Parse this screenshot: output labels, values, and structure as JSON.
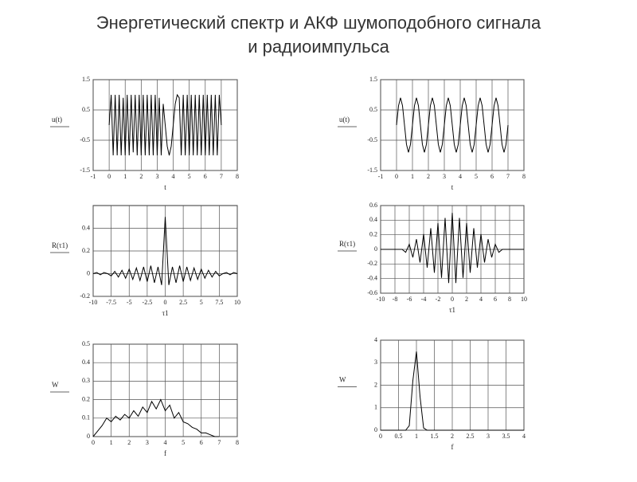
{
  "title": [
    "Энергетический спектр и АКФ шумоподобного сигнала",
    "и радиоимпульса"
  ],
  "chart_data": [
    {
      "type": "line",
      "ylabel": "u(t)",
      "xlabel": "t",
      "color": "#000000",
      "grid": true,
      "xlim": [
        -1,
        8
      ],
      "ylim": [
        -1.5,
        1.5
      ],
      "xticks": [
        -1,
        0,
        1,
        2,
        3,
        4,
        5,
        6,
        7,
        8
      ],
      "yticks": [
        -1.5,
        -0.5,
        0.5,
        1.5
      ],
      "x": [
        0,
        0.125,
        0.25,
        0.375,
        0.5,
        0.625,
        0.75,
        0.875,
        1,
        1.125,
        1.25,
        1.375,
        1.5,
        1.625,
        1.75,
        1.875,
        2,
        2.125,
        2.25,
        2.375,
        2.5,
        2.625,
        2.75,
        2.875,
        3,
        3.125,
        3.25,
        3.375,
        3.5,
        3.625,
        3.75,
        3.875,
        4,
        4.125,
        4.25,
        4.375,
        4.5,
        4.625,
        4.75,
        4.875,
        5,
        5.125,
        5.25,
        5.375,
        5.5,
        5.625,
        5.75,
        5.875,
        6,
        6.125,
        6.25,
        6.375,
        6.5,
        6.625,
        6.75,
        6.875,
        7
      ],
      "values": [
        0,
        1,
        -1,
        1,
        -1,
        1,
        -1,
        0.9,
        -1,
        1,
        -1,
        1,
        -0.9,
        1,
        -1,
        1,
        -1,
        1,
        -1,
        1,
        -1,
        1,
        -1,
        1,
        -1,
        0.9,
        -1,
        0.7,
        0,
        -0.7,
        -1,
        -0.7,
        0,
        0.7,
        1,
        0.9,
        -1,
        1,
        -1,
        1,
        -1,
        1,
        -1,
        1,
        -1,
        1,
        -1,
        1,
        -1,
        1,
        -1,
        1,
        -1,
        1,
        -1,
        1,
        0
      ]
    },
    {
      "type": "line",
      "ylabel": "u(t)",
      "xlabel": "t",
      "color": "#000000",
      "grid": true,
      "xlim": [
        -1,
        8
      ],
      "ylim": [
        -1.5,
        1.5
      ],
      "xticks": [
        -1,
        0,
        1,
        2,
        3,
        4,
        5,
        6,
        7,
        8
      ],
      "yticks": [
        -1.5,
        -0.5,
        0.5,
        1.5
      ],
      "x": [
        0,
        0.125,
        0.25,
        0.375,
        0.5,
        0.625,
        0.75,
        0.875,
        1,
        1.125,
        1.25,
        1.375,
        1.5,
        1.625,
        1.75,
        1.875,
        2,
        2.125,
        2.25,
        2.375,
        2.5,
        2.625,
        2.75,
        2.875,
        3,
        3.125,
        3.25,
        3.375,
        3.5,
        3.625,
        3.75,
        3.875,
        4,
        4.125,
        4.25,
        4.375,
        4.5,
        4.625,
        4.75,
        4.875,
        5,
        5.125,
        5.25,
        5.375,
        5.5,
        5.625,
        5.75,
        5.875,
        6,
        6.125,
        6.25,
        6.375,
        6.5,
        6.625,
        6.75,
        6.875,
        7
      ],
      "values": [
        0,
        0.64,
        0.9,
        0.64,
        0,
        -0.64,
        -0.9,
        -0.64,
        0,
        0.64,
        0.9,
        0.64,
        0,
        -0.64,
        -0.9,
        -0.64,
        0,
        0.64,
        0.9,
        0.64,
        0,
        -0.64,
        -0.9,
        -0.64,
        0,
        0.64,
        0.9,
        0.64,
        0,
        -0.64,
        -0.9,
        -0.64,
        0,
        0.64,
        0.9,
        0.64,
        0,
        -0.64,
        -0.9,
        -0.64,
        0,
        0.64,
        0.9,
        0.64,
        0,
        -0.64,
        -0.9,
        -0.64,
        0,
        0.64,
        0.9,
        0.64,
        0,
        -0.64,
        -0.9,
        -0.64,
        0
      ]
    },
    {
      "type": "line",
      "ylabel": "R(τ1)",
      "xlabel": "τ1",
      "color": "#000000",
      "grid": true,
      "xlim": [
        -10,
        10
      ],
      "ylim": [
        -0.2,
        0.6
      ],
      "xticks": [
        -10,
        -7.5,
        -5,
        -2.5,
        0,
        2.5,
        5,
        7.5,
        10
      ],
      "yticks": [
        -0.2,
        0,
        0.2,
        0.4
      ],
      "x": [
        -10,
        -9.5,
        -9,
        -8.5,
        -8,
        -7.5,
        -7,
        -6.5,
        -6,
        -5.5,
        -5,
        -4.5,
        -4,
        -3.5,
        -3,
        -2.5,
        -2,
        -1.5,
        -1,
        -0.5,
        0,
        0.5,
        1,
        1.5,
        2,
        2.5,
        3,
        3.5,
        4,
        4.5,
        5,
        5.5,
        6,
        6.5,
        7,
        7.5,
        8,
        8.5,
        9,
        9.5,
        10
      ],
      "values": [
        0,
        0.01,
        -0.01,
        0.01,
        0,
        -0.02,
        0.02,
        -0.03,
        0.03,
        -0.04,
        0.04,
        -0.05,
        0.05,
        -0.06,
        0.06,
        -0.07,
        0.07,
        -0.08,
        0.06,
        -0.1,
        0.5,
        -0.1,
        0.06,
        -0.08,
        0.07,
        -0.07,
        0.06,
        -0.06,
        0.05,
        -0.05,
        0.04,
        -0.04,
        0.03,
        -0.03,
        0.02,
        -0.02,
        0,
        0.01,
        -0.01,
        0.01,
        0
      ]
    },
    {
      "type": "line",
      "ylabel": "R(τ1)",
      "xlabel": "τ1",
      "color": "#000000",
      "grid": true,
      "xlim": [
        -10,
        10
      ],
      "ylim": [
        -0.6,
        0.6
      ],
      "xticks": [
        -10,
        -8,
        -6,
        -4,
        -2,
        0,
        2,
        4,
        6,
        8,
        10
      ],
      "yticks": [
        -0.6,
        -0.4,
        -0.2,
        0,
        0.2,
        0.4,
        0.6
      ],
      "x": [
        -10,
        -9.5,
        -9,
        -8.5,
        -8,
        -7.5,
        -7,
        -6.5,
        -6,
        -5.5,
        -5,
        -4.5,
        -4,
        -3.5,
        -3,
        -2.5,
        -2,
        -1.5,
        -1,
        -0.5,
        0,
        0.5,
        1,
        1.5,
        2,
        2.5,
        3,
        3.5,
        4,
        4.5,
        5,
        5.5,
        6,
        6.5,
        7,
        7.5,
        8,
        8.5,
        9,
        9.5,
        10
      ],
      "values": [
        0,
        0,
        0,
        0,
        0,
        0,
        0,
        -0.04,
        0.07,
        -0.11,
        0.14,
        -0.18,
        0.21,
        -0.25,
        0.29,
        -0.32,
        0.36,
        -0.39,
        0.43,
        -0.46,
        0.5,
        -0.46,
        0.43,
        -0.39,
        0.36,
        -0.32,
        0.29,
        -0.25,
        0.21,
        -0.18,
        0.14,
        -0.11,
        0.07,
        -0.04,
        0,
        0,
        0,
        0,
        0,
        0,
        0
      ]
    },
    {
      "type": "line",
      "ylabel": "W",
      "xlabel": "f",
      "color": "#000000",
      "grid": true,
      "xlim": [
        0,
        8
      ],
      "ylim": [
        0,
        0.5
      ],
      "xticks": [
        0,
        1,
        2,
        3,
        4,
        5,
        6,
        7,
        8
      ],
      "yticks": [
        0,
        0.1,
        0.2,
        0.3,
        0.4,
        0.5
      ],
      "x": [
        0,
        0.25,
        0.5,
        0.75,
        1,
        1.25,
        1.5,
        1.75,
        2,
        2.25,
        2.5,
        2.75,
        3,
        3.25,
        3.5,
        3.75,
        4,
        4.25,
        4.5,
        4.75,
        5,
        5.25,
        5.5,
        5.75,
        6,
        6.25,
        6.5,
        6.75,
        7
      ],
      "values": [
        0,
        0.03,
        0.06,
        0.1,
        0.08,
        0.11,
        0.09,
        0.12,
        0.1,
        0.14,
        0.11,
        0.16,
        0.13,
        0.19,
        0.15,
        0.2,
        0.14,
        0.17,
        0.1,
        0.13,
        0.08,
        0.07,
        0.05,
        0.04,
        0.02,
        0.02,
        0.01,
        0,
        0
      ]
    },
    {
      "type": "line",
      "ylabel": "W",
      "xlabel": "f",
      "color": "#000000",
      "grid": true,
      "xlim": [
        0,
        4
      ],
      "ylim": [
        0,
        4
      ],
      "xticks": [
        0,
        0.5,
        1,
        1.5,
        2,
        2.5,
        3,
        3.5,
        4
      ],
      "yticks": [
        0,
        1,
        2,
        3,
        4
      ],
      "x": [
        0,
        0.1,
        0.2,
        0.3,
        0.4,
        0.5,
        0.6,
        0.7,
        0.8,
        0.9,
        1,
        1.1,
        1.2,
        1.3,
        1.4,
        1.5,
        1.6,
        1.7,
        1.8,
        1.9,
        2,
        2.1,
        2.2,
        2.3,
        2.4,
        2.5,
        2.6,
        2.7,
        2.8,
        2.9,
        3,
        3.1,
        3.2,
        3.3,
        3.4,
        3.5,
        3.6,
        3.7,
        3.8,
        3.9,
        4
      ],
      "values": [
        0,
        0,
        0,
        0,
        0,
        0,
        0,
        0,
        0.2,
        2.2,
        3.5,
        1.5,
        0.1,
        0,
        0,
        0,
        0,
        0,
        0,
        0,
        0,
        0,
        0,
        0,
        0,
        0,
        0,
        0,
        0,
        0,
        0,
        0,
        0,
        0,
        0,
        0,
        0,
        0,
        0,
        0,
        0
      ]
    }
  ]
}
